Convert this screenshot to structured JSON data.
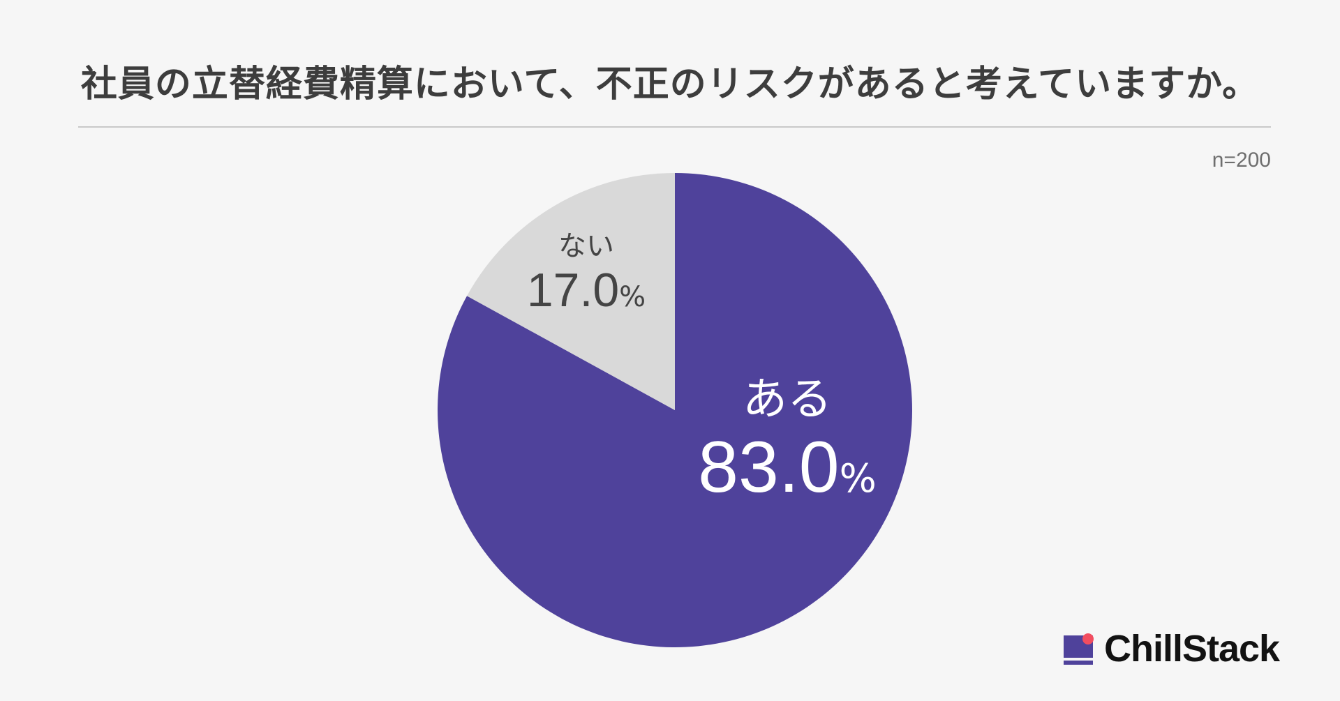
{
  "title": "社員の立替経費精算において、不正のリスクがあると考えていますか。",
  "sample_size": "n=200",
  "brand": {
    "name": "ChillStack",
    "mark_colors": {
      "primary": "#4f429b",
      "accent": "#f24d5f"
    }
  },
  "colors": {
    "background": "#f6f6f6",
    "yes": "#4f429b",
    "no": "#d9d9d9"
  },
  "chart_data": {
    "type": "pie",
    "title": "社員の立替経費精算において、不正のリスクがあると考えていますか。",
    "n": 200,
    "slices": [
      {
        "label": "ある",
        "value": 83.0,
        "display": "83.0",
        "unit": "%",
        "color": "#4f429b"
      },
      {
        "label": "ない",
        "value": 17.0,
        "display": "17.0",
        "unit": "%",
        "color": "#d9d9d9"
      }
    ]
  }
}
